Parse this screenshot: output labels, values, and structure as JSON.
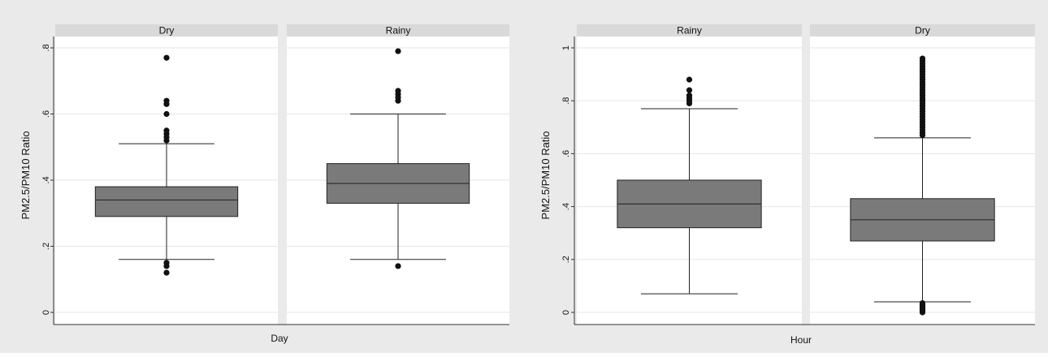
{
  "chart_data": [
    {
      "type": "box",
      "xlabel": "Day",
      "ylabel": "PM2.5/PM10 Ratio",
      "ylim": [
        0,
        0.8
      ],
      "yticks": [
        0,
        0.2,
        0.4,
        0.6,
        0.8
      ],
      "ytick_labels": [
        "0",
        ".2",
        ".4",
        ".6",
        ".8"
      ],
      "grid": true,
      "panels": [
        {
          "label": "Dry",
          "q1": 0.29,
          "median": 0.34,
          "q3": 0.38,
          "whisker_low": 0.16,
          "whisker_high": 0.51,
          "outliers": [
            0.77,
            0.64,
            0.63,
            0.6,
            0.55,
            0.54,
            0.53,
            0.52,
            0.15,
            0.14,
            0.12
          ]
        },
        {
          "label": "Rainy",
          "q1": 0.33,
          "median": 0.39,
          "q3": 0.45,
          "whisker_low": 0.16,
          "whisker_high": 0.6,
          "outliers": [
            0.79,
            0.67,
            0.66,
            0.65,
            0.64,
            0.14
          ]
        }
      ]
    },
    {
      "type": "box",
      "xlabel": "Hour",
      "ylabel": "PM2.5/PM10 Ratio",
      "ylim": [
        0,
        1
      ],
      "yticks": [
        0,
        0.2,
        0.4,
        0.6,
        0.8,
        1
      ],
      "ytick_labels": [
        "0",
        ".2",
        ".4",
        ".6",
        ".8",
        "1"
      ],
      "grid": true,
      "panels": [
        {
          "label": "Rainy",
          "q1": 0.32,
          "median": 0.41,
          "q3": 0.5,
          "whisker_low": 0.07,
          "whisker_high": 0.77,
          "outliers": [
            0.88,
            0.84,
            0.82,
            0.81,
            0.8,
            0.79
          ]
        },
        {
          "label": "Dry",
          "q1": 0.27,
          "median": 0.35,
          "q3": 0.43,
          "whisker_low": 0.04,
          "whisker_high": 0.66,
          "outliers": [
            0.96,
            0.95,
            0.94,
            0.93,
            0.92,
            0.91,
            0.9,
            0.89,
            0.88,
            0.87,
            0.86,
            0.85,
            0.84,
            0.83,
            0.82,
            0.81,
            0.8,
            0.79,
            0.78,
            0.77,
            0.76,
            0.75,
            0.74,
            0.73,
            0.72,
            0.71,
            0.7,
            0.69,
            0.68,
            0.67,
            0.035,
            0.03,
            0.025,
            0.02,
            0.015,
            0.01,
            0.005,
            0.0
          ]
        }
      ]
    }
  ],
  "colors": {
    "background": "#eaeaea",
    "plot_area": "#ffffff",
    "strip": "#d9d9d9",
    "box_fill": "#7a7a7a",
    "line": "#222222",
    "grid": "#e6e6e6",
    "outlier": "#111111"
  }
}
